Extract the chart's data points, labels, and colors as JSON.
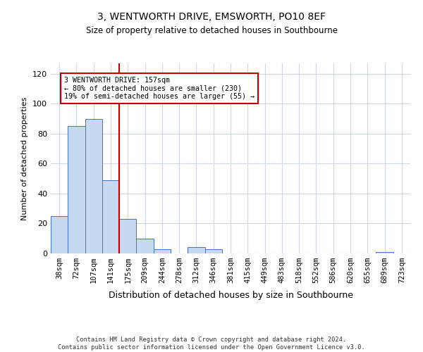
{
  "title": "3, WENTWORTH DRIVE, EMSWORTH, PO10 8EF",
  "subtitle": "Size of property relative to detached houses in Southbourne",
  "xlabel": "Distribution of detached houses by size in Southbourne",
  "ylabel": "Number of detached properties",
  "footnote": "Contains HM Land Registry data © Crown copyright and database right 2024.\nContains public sector information licensed under the Open Government Licence v3.0.",
  "bar_labels": [
    "38sqm",
    "72sqm",
    "107sqm",
    "141sqm",
    "175sqm",
    "209sqm",
    "244sqm",
    "278sqm",
    "312sqm",
    "346sqm",
    "381sqm",
    "415sqm",
    "449sqm",
    "483sqm",
    "518sqm",
    "552sqm",
    "586sqm",
    "620sqm",
    "655sqm",
    "689sqm",
    "723sqm"
  ],
  "bar_values": [
    25,
    85,
    90,
    49,
    23,
    10,
    3,
    0,
    4,
    3,
    0,
    0,
    0,
    0,
    0,
    0,
    0,
    0,
    0,
    1,
    0
  ],
  "bar_color": "#c6d9f0",
  "bar_edgecolor": "#4472c4",
  "vline_x": 3.5,
  "vline_color": "#c00000",
  "annotation_text": "3 WENTWORTH DRIVE: 157sqm\n← 80% of detached houses are smaller (230)\n19% of semi-detached houses are larger (55) →",
  "annotation_box_color": "#c00000",
  "ylim": [
    0,
    127
  ],
  "yticks": [
    0,
    20,
    40,
    60,
    80,
    100,
    120
  ],
  "background_color": "#ffffff",
  "grid_color": "#d0d8e8"
}
